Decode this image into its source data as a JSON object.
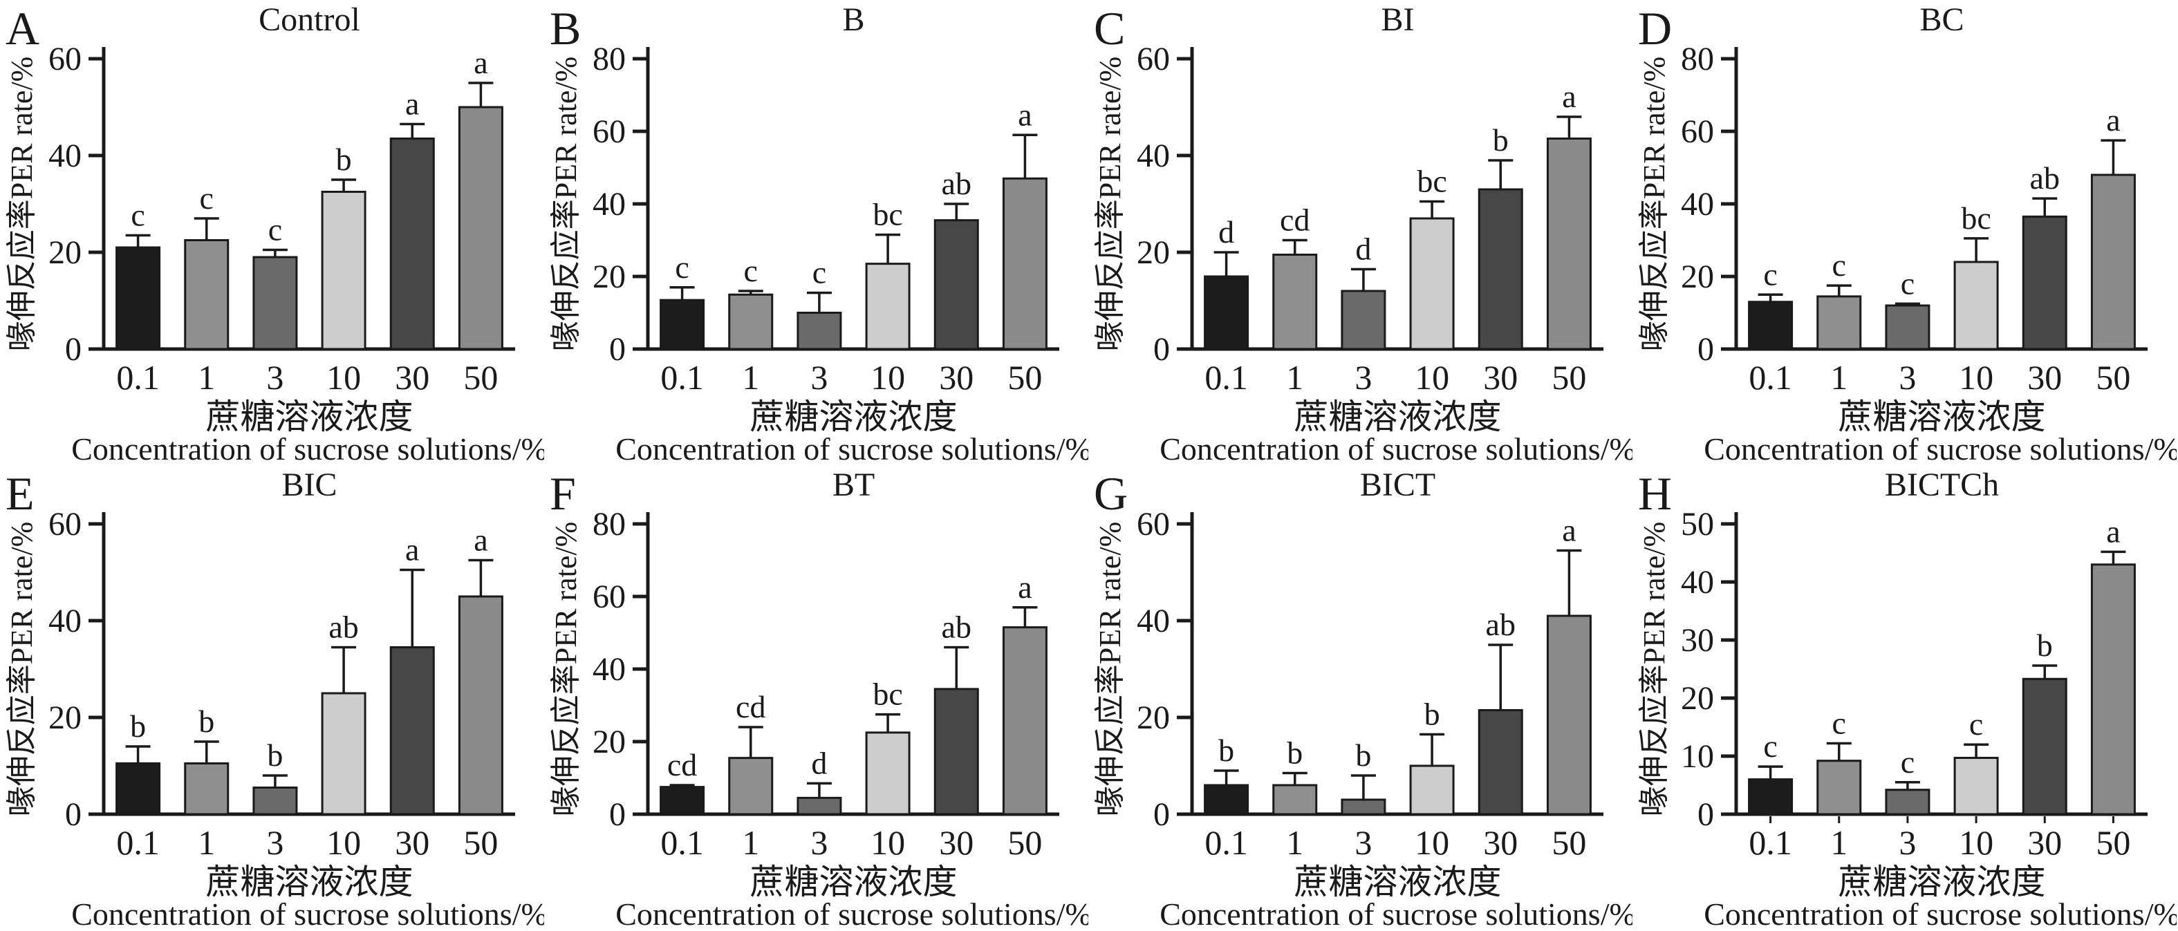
{
  "figure": {
    "background": "#ffffff",
    "axis_color": "#1a1a1a",
    "bar_colors": [
      "#1c1c1c",
      "#8f8f8f",
      "#6a6a6a",
      "#cdcdcd",
      "#474747",
      "#8a8a8a"
    ],
    "bar_outline": "#1a1a1a",
    "ylabel": "喙伸反应率PER rate/%",
    "xlabel_cn": "蔗糖溶液浓度",
    "xlabel_en": "Concentration of sucrose solutions/%",
    "categories": [
      "0.1",
      "1",
      "3",
      "10",
      "30",
      "50"
    ]
  },
  "chart_data": [
    {
      "type": "bar",
      "panel": "A",
      "title": "Control",
      "categories": [
        "0.1",
        "1",
        "3",
        "10",
        "30",
        "50"
      ],
      "values": [
        21,
        22.5,
        19,
        32.5,
        43.5,
        50
      ],
      "errors": [
        2.5,
        4.5,
        1.5,
        2.5,
        3,
        5
      ],
      "sig_letters": [
        "c",
        "c",
        "c",
        "b",
        "a",
        "a"
      ],
      "ylabel": "喙伸反应率PER rate/%",
      "xlabel_cn": "蔗糖溶液浓度",
      "xlabel_en": "Concentration of sucrose solutions/%",
      "ylim": [
        0,
        60
      ],
      "yticks": [
        0,
        20,
        40,
        60
      ],
      "x_minor_ticks": false
    },
    {
      "type": "bar",
      "panel": "B",
      "title": "B",
      "categories": [
        "0.1",
        "1",
        "3",
        "10",
        "30",
        "50"
      ],
      "values": [
        13.5,
        15,
        10,
        23.5,
        35.5,
        47
      ],
      "errors": [
        3.5,
        1,
        5.5,
        8,
        4.5,
        12
      ],
      "sig_letters": [
        "c",
        "c",
        "c",
        "bc",
        "ab",
        "a"
      ],
      "ylabel": "喙伸反应率PER rate/%",
      "xlabel_cn": "蔗糖溶液浓度",
      "xlabel_en": "Concentration of sucrose solutions/%",
      "ylim": [
        0,
        80
      ],
      "yticks": [
        0,
        20,
        40,
        60,
        80
      ],
      "x_minor_ticks": false
    },
    {
      "type": "bar",
      "panel": "C",
      "title": "BI",
      "categories": [
        "0.1",
        "1",
        "3",
        "10",
        "30",
        "50"
      ],
      "values": [
        15,
        19.5,
        12,
        27,
        33,
        43.5
      ],
      "errors": [
        5,
        3,
        4.5,
        3.5,
        6,
        4.5
      ],
      "sig_letters": [
        "d",
        "cd",
        "d",
        "bc",
        "b",
        "a"
      ],
      "ylabel": "喙伸反应率PER rate/%",
      "xlabel_cn": "蔗糖溶液浓度",
      "xlabel_en": "Concentration of sucrose solutions/%",
      "ylim": [
        0,
        60
      ],
      "yticks": [
        0,
        20,
        40,
        60
      ],
      "x_minor_ticks": false
    },
    {
      "type": "bar",
      "panel": "D",
      "title": "BC",
      "categories": [
        "0.1",
        "1",
        "3",
        "10",
        "30",
        "50"
      ],
      "values": [
        13,
        14.5,
        12,
        24,
        36.5,
        48
      ],
      "errors": [
        2,
        3,
        0.5,
        6.5,
        5,
        9.5
      ],
      "sig_letters": [
        "c",
        "c",
        "c",
        "bc",
        "ab",
        "a"
      ],
      "ylabel": "喙伸反应率PER rate/%",
      "xlabel_cn": "蔗糖溶液浓度",
      "xlabel_en": "Concentration of sucrose solutions/%",
      "ylim": [
        0,
        80
      ],
      "yticks": [
        0,
        20,
        40,
        60,
        80
      ],
      "x_minor_ticks": false
    },
    {
      "type": "bar",
      "panel": "E",
      "title": "BIC",
      "categories": [
        "0.1",
        "1",
        "3",
        "10",
        "30",
        "50"
      ],
      "values": [
        10.5,
        10.5,
        5.5,
        25,
        34.5,
        45
      ],
      "errors": [
        3.5,
        4.5,
        2.5,
        9.5,
        16,
        7.5
      ],
      "sig_letters": [
        "b",
        "b",
        "b",
        "ab",
        "a",
        "a"
      ],
      "ylabel": "喙伸反应率PER rate/%",
      "xlabel_cn": "蔗糖溶液浓度",
      "xlabel_en": "Concentration of sucrose solutions/%",
      "ylim": [
        0,
        60
      ],
      "yticks": [
        0,
        20,
        40,
        60
      ],
      "x_minor_ticks": false
    },
    {
      "type": "bar",
      "panel": "F",
      "title": "BT",
      "categories": [
        "0.1",
        "1",
        "3",
        "10",
        "30",
        "50"
      ],
      "values": [
        7.5,
        15.5,
        4.5,
        22.5,
        34.5,
        51.5
      ],
      "errors": [
        0.5,
        8.5,
        4,
        5,
        11.5,
        5.5
      ],
      "sig_letters": [
        "cd",
        "cd",
        "d",
        "bc",
        "ab",
        "a"
      ],
      "ylabel": "喙伸反应率PER rate/%",
      "xlabel_cn": "蔗糖溶液浓度",
      "xlabel_en": "Concentration of sucrose solutions/%",
      "ylim": [
        0,
        80
      ],
      "yticks": [
        0,
        20,
        40,
        60,
        80
      ],
      "x_minor_ticks": false
    },
    {
      "type": "bar",
      "panel": "G",
      "title": "BICT",
      "categories": [
        "0.1",
        "1",
        "3",
        "10",
        "30",
        "50"
      ],
      "values": [
        6,
        6,
        3,
        10,
        21.5,
        41
      ],
      "errors": [
        3,
        2.5,
        5,
        6.5,
        13.5,
        13.5
      ],
      "sig_letters": [
        "b",
        "b",
        "b",
        "b",
        "ab",
        "a"
      ],
      "ylabel": "喙伸反应率PER rate/%",
      "xlabel_cn": "蔗糖溶液浓度",
      "xlabel_en": "Concentration of sucrose solutions/%",
      "ylim": [
        0,
        60
      ],
      "yticks": [
        0,
        20,
        40,
        60
      ],
      "x_minor_ticks": false
    },
    {
      "type": "bar",
      "panel": "H",
      "title": "BICTCh",
      "categories": [
        "0.1",
        "1",
        "3",
        "10",
        "30",
        "50"
      ],
      "values": [
        6,
        9.2,
        4.2,
        9.7,
        23.3,
        43
      ],
      "errors": [
        2.2,
        3,
        1.3,
        2.3,
        2.3,
        2.2
      ],
      "sig_letters": [
        "c",
        "c",
        "c",
        "c",
        "b",
        "a"
      ],
      "ylabel": "喙伸反应率PER rate/%",
      "xlabel_cn": "蔗糖溶液浓度",
      "xlabel_en": "Concentration of sucrose solutions/%",
      "ylim": [
        0,
        50
      ],
      "yticks": [
        0,
        10,
        20,
        30,
        40,
        50
      ],
      "x_minor_ticks": true
    }
  ]
}
